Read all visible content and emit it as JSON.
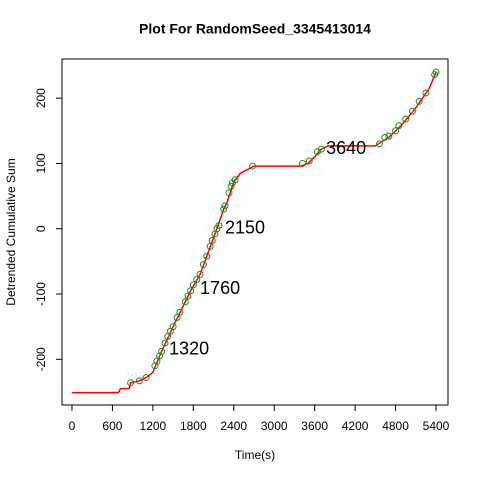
{
  "chart_data": {
    "type": "line",
    "title": "Plot For RandomSeed_3345413014",
    "xlabel": "Time(s)",
    "ylabel": "Detrended Cumulative Sum",
    "xlim": [
      -148,
      5578
    ],
    "ylim": [
      -270,
      260
    ],
    "xticks": [
      0,
      600,
      1200,
      1800,
      2400,
      3000,
      3600,
      4200,
      4800,
      5400
    ],
    "yticks": [
      -200,
      -100,
      0,
      100,
      200
    ],
    "series": [
      {
        "color": "#ff0000",
        "x": [
          0,
          690,
          720,
          850,
          870,
          1000,
          1100,
          1200,
          1320,
          1500,
          1760,
          1900,
          2150,
          2250,
          2300,
          2400,
          2500,
          2700,
          3400,
          3500,
          3600,
          3700,
          3800,
          4500,
          4700,
          4900,
          5100,
          5300,
          5400
        ],
        "y": [
          -251,
          -251,
          -245,
          -245,
          -236,
          -233,
          -228,
          -220,
          -190,
          -150,
          -95,
          -70,
          0,
          30,
          40,
          72,
          85,
          96,
          96,
          100,
          110,
          122,
          127,
          127,
          140,
          160,
          185,
          215,
          240
        ]
      },
      {
        "color": "#228b22",
        "x": [
          870,
          1000,
          1100,
          1230,
          1260,
          1300,
          1330,
          1380,
          1420,
          1460,
          1500,
          1560,
          1600,
          1680,
          1720,
          1760,
          1800,
          1850,
          1900,
          1950,
          2000,
          2050,
          2080,
          2120,
          2150,
          2180,
          2250,
          2270,
          2330,
          2360,
          2380,
          2420,
          2680,
          3420,
          3520,
          3640,
          3700,
          4560,
          4640,
          4700,
          4800,
          4850,
          4950,
          5050,
          5150,
          5250,
          5380,
          5400
        ],
        "y": [
          -236,
          -233,
          -228,
          -210,
          -203,
          -195,
          -188,
          -175,
          -165,
          -157,
          -150,
          -136,
          -128,
          -112,
          -103,
          -95,
          -86,
          -78,
          -70,
          -55,
          -42,
          -27,
          -18,
          -8,
          0,
          5,
          30,
          35,
          55,
          65,
          70,
          75,
          96,
          100,
          104,
          118,
          122,
          130,
          140,
          142,
          150,
          158,
          168,
          180,
          195,
          208,
          236,
          240
        ]
      }
    ],
    "annotations": [
      {
        "text": "1320",
        "x": 1440,
        "y": -185,
        "color": "#0000ff"
      },
      {
        "text": "1760",
        "x": 1900,
        "y": -93,
        "color": "#0000ff"
      },
      {
        "text": "2150",
        "x": 2270,
        "y": 0,
        "color": "#0000ff"
      },
      {
        "text": "3640",
        "x": 3770,
        "y": 122,
        "color": "#0000ff"
      }
    ]
  }
}
